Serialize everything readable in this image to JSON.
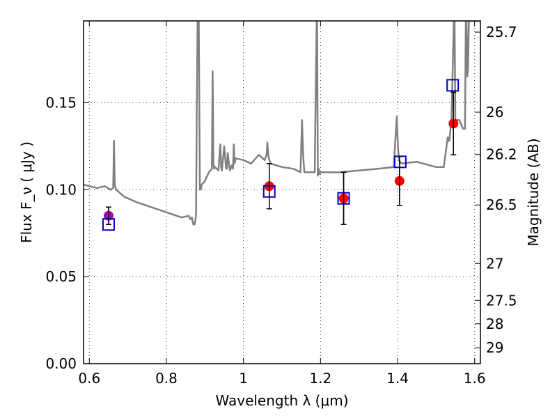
{
  "chart_data": {
    "type": "scatter",
    "title": "",
    "xlabel": "Wavelength  λ (μm)",
    "ylabel": "Flux  F_ν  ( μJy )",
    "ylabel_right": "Magnitude (AB)",
    "xlim": [
      0.585,
      1.615
    ],
    "ylim": [
      0.0,
      0.197
    ],
    "grid": true,
    "grid_style": "dotted",
    "x_ticks": [
      0.6,
      0.8,
      1.0,
      1.2,
      1.4,
      1.6
    ],
    "x_tick_labels": [
      "0.6",
      "0.8",
      "1",
      "1.2",
      "1.4",
      "1.6"
    ],
    "y_ticks": [
      0.0,
      0.05,
      0.1,
      0.15
    ],
    "y_tick_labels": [
      "0.00",
      "0.05",
      "0.10",
      "0.15"
    ],
    "right_ticks": [
      {
        "label": "25.7",
        "mag": 25.7
      },
      {
        "label": "26",
        "mag": 26.0
      },
      {
        "label": "26.2",
        "mag": 26.2
      },
      {
        "label": "26.5",
        "mag": 26.5
      },
      {
        "label": "27",
        "mag": 27.0
      },
      {
        "label": "27.5",
        "mag": 27.5
      },
      {
        "label": "28",
        "mag": 28.0
      },
      {
        "label": "29",
        "mag": 29.0
      }
    ],
    "series": [
      {
        "kind": "line",
        "color": "#808080",
        "x": [
          0.585,
          0.6,
          0.62,
          0.64,
          0.655,
          0.662,
          0.664,
          0.666,
          0.668,
          0.67,
          0.69,
          0.72,
          0.76,
          0.8,
          0.84,
          0.858,
          0.862,
          0.866,
          0.87,
          0.873,
          0.875,
          0.877,
          0.879,
          0.881,
          0.884,
          0.887,
          0.889,
          0.892,
          0.9,
          0.91,
          0.918,
          0.92,
          0.922,
          0.924,
          0.926,
          0.935,
          0.94,
          0.942,
          0.944,
          0.95,
          0.955,
          0.957,
          0.959,
          0.965,
          0.97,
          0.973,
          0.975,
          0.977,
          0.98,
          1.0,
          1.02,
          1.04,
          1.055,
          1.06,
          1.062,
          1.065,
          1.07,
          1.1,
          1.13,
          1.148,
          1.152,
          1.155,
          1.158,
          1.16,
          1.165,
          1.185,
          1.19,
          1.191,
          1.193,
          1.195,
          1.197,
          1.2,
          1.25,
          1.3,
          1.35,
          1.39,
          1.398,
          1.401,
          1.404,
          1.41,
          1.45,
          1.5,
          1.52,
          1.53,
          1.534,
          1.54,
          1.546,
          1.548,
          1.55,
          1.56,
          1.57,
          1.575,
          1.577,
          1.579,
          1.581,
          1.583,
          1.585,
          1.59,
          1.6,
          1.615
        ],
        "y": [
          0.103,
          0.102,
          0.101,
          0.102,
          0.1,
          0.101,
          0.128,
          0.103,
          0.101,
          0.1,
          0.096,
          0.093,
          0.09,
          0.087,
          0.084,
          0.085,
          0.083,
          0.084,
          0.08,
          0.08,
          0.082,
          0.086,
          0.15,
          0.197,
          0.197,
          0.1,
          0.1,
          0.103,
          0.105,
          0.11,
          0.112,
          0.168,
          0.115,
          0.112,
          0.113,
          0.111,
          0.126,
          0.113,
          0.111,
          0.125,
          0.112,
          0.112,
          0.121,
          0.111,
          0.114,
          0.112,
          0.126,
          0.115,
          0.118,
          0.117,
          0.115,
          0.12,
          0.117,
          0.12,
          0.127,
          0.119,
          0.115,
          0.113,
          0.112,
          0.11,
          0.14,
          0.12,
          0.11,
          0.11,
          0.11,
          0.11,
          0.197,
          0.197,
          0.108,
          0.112,
          0.109,
          0.11,
          0.11,
          0.111,
          0.112,
          0.113,
          0.142,
          0.124,
          0.117,
          0.115,
          0.116,
          0.113,
          0.113,
          0.13,
          0.128,
          0.14,
          0.197,
          0.197,
          0.14,
          0.14,
          0.135,
          0.135,
          0.197,
          0.197,
          0.165,
          0.17,
          0.197,
          0.197,
          0.197,
          0.197
        ]
      },
      {
        "kind": "points",
        "marker": "circle",
        "color": "#ff0000",
        "x": [
          1.067,
          1.26,
          1.405,
          1.545
        ],
        "y": [
          0.102,
          0.095,
          0.105,
          0.138
        ],
        "yerr": [
          0.013,
          0.015,
          0.014,
          0.018
        ]
      },
      {
        "kind": "points",
        "marker": "circle",
        "color": "#aa00aa",
        "x": [
          0.65
        ],
        "y": [
          0.085
        ],
        "yerr": [
          0.005
        ]
      },
      {
        "kind": "points",
        "marker": "open-square",
        "color": "#0000cc",
        "x": [
          0.65,
          1.067,
          1.26,
          1.407,
          1.543
        ],
        "y": [
          0.08,
          0.099,
          0.095,
          0.116,
          0.16
        ]
      }
    ]
  }
}
